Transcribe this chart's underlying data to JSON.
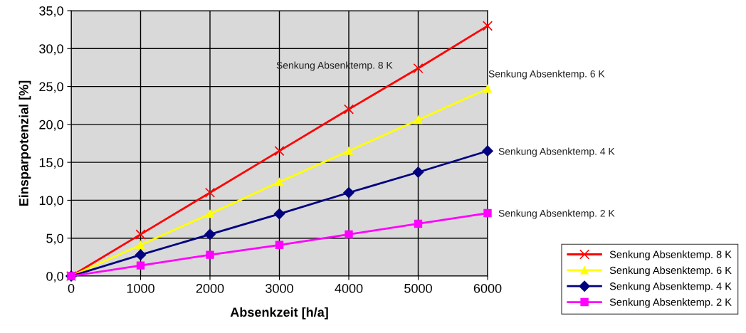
{
  "chart_data": {
    "type": "line",
    "xlabel": "Absenkzeit [h/a]",
    "ylabel": "Einsparpotenzial [%]",
    "x": [
      0,
      1000,
      2000,
      3000,
      4000,
      5000,
      6000
    ],
    "xlim": [
      0,
      6000
    ],
    "xticks": [
      0,
      1000,
      2000,
      3000,
      4000,
      5000,
      6000
    ],
    "ylim": [
      0,
      35
    ],
    "yticks": [
      {
        "value": 0,
        "label": "0,0"
      },
      {
        "value": 5,
        "label": "5,0"
      },
      {
        "value": 10,
        "label": "10,0"
      },
      {
        "value": 15,
        "label": "15,0"
      },
      {
        "value": 20,
        "label": "20,0"
      },
      {
        "value": 25,
        "label": "25,0"
      },
      {
        "value": 30,
        "label": "30,0"
      },
      {
        "value": 35,
        "label": "35,0"
      }
    ],
    "grid": true,
    "legend": "bottom right",
    "series": [
      {
        "name": "Senkung Absenktemp. 8 K",
        "color": "#ff0000",
        "marker": "cross",
        "values": [
          0,
          5.5,
          11,
          16.5,
          22,
          27.4,
          33
        ]
      },
      {
        "name": "Senkung Absenktemp. 6 K",
        "color": "#ffff00",
        "marker": "triangle",
        "values": [
          0,
          4.1,
          8.2,
          12.4,
          16.5,
          20.6,
          24.7
        ]
      },
      {
        "name": "Senkung Absenktemp. 4 K",
        "color": "#000080",
        "marker": "diamond",
        "values": [
          0,
          2.8,
          5.5,
          8.2,
          11,
          13.7,
          16.5
        ]
      },
      {
        "name": "Senkung Absenktemp. 2 K",
        "color": "#ff00ff",
        "marker": "square",
        "values": [
          0,
          1.4,
          2.8,
          4.1,
          5.5,
          6.9,
          8.3
        ]
      }
    ],
    "annotations": [
      "Senkung Absenktemp. 8 K",
      "Senkung Absenktemp. 6 K",
      "Senkung Absenktemp. 4 K",
      "Senkung Absenktemp. 2 K"
    ]
  }
}
